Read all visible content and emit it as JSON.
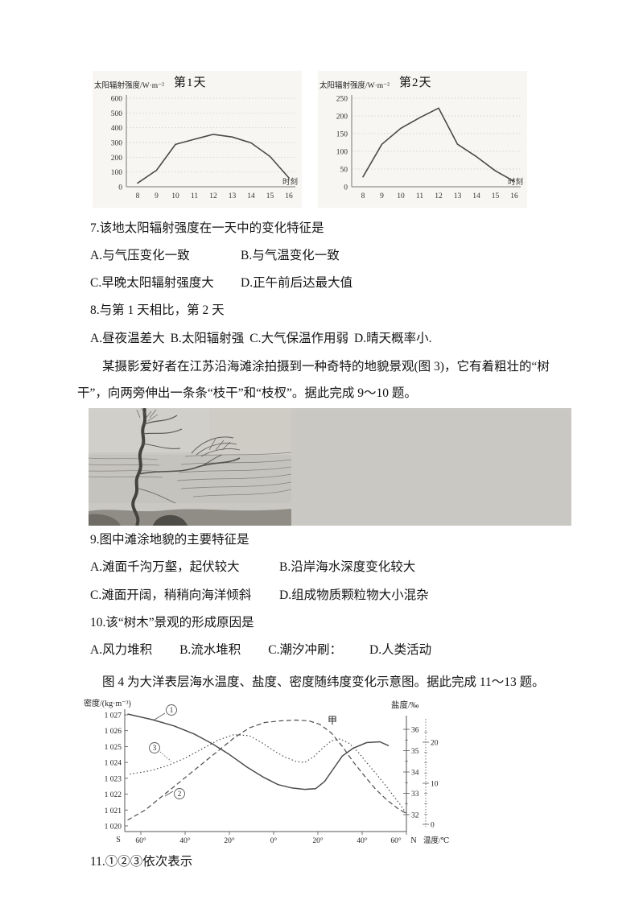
{
  "passages": {
    "mudflat": "某摄影爱好者在江苏沿海滩涂拍摄到一种奇特的地貌景观(图 3)，它有着粗壮的“树干”，向两旁伸出一条条“枝干”和“枝杈”。据此完成 9～10 题。",
    "ocean": "图 4 为大洋表层海水温度、盐度、密度随纬度变化示意图。据此完成 11～13 题。"
  },
  "questions": {
    "q7": {
      "stem": "7.该地太阳辐射强度在一天中的变化特征是",
      "options": [
        "A.与气压变化一致",
        "B.与气温变化一致",
        "C.早晚太阳辐射强度大",
        "D.正午前后达最大值"
      ]
    },
    "q8": {
      "stem": "8.与第 1 天相比，第 2 天",
      "options": [
        "A.昼夜温差大",
        "B.太阳辐射强",
        "C.大气保温作用弱",
        "D.晴天概率小."
      ]
    },
    "q9": {
      "stem": "9.图中滩涂地貌的主要特征是",
      "options": [
        "A.滩面千沟万壑，起伏较大",
        "B.沿岸海水深度变化较大",
        "C.滩面开阔，稍稍向海洋倾斜",
        "D.组成物质颗粒物大小混杂"
      ]
    },
    "q10": {
      "stem": "10.该“树木”景观的形成原因是",
      "options": [
        "A.风力堆积",
        "B.流水堆积",
        "C.潮汐冲刷：",
        "D.人类活动"
      ]
    },
    "q11": {
      "stem": "11.①②③依次表示"
    }
  },
  "chart_data": [
    {
      "type": "line",
      "title": "第1天",
      "ylabel": "太阳辐射强度/W·m⁻²",
      "xlabel": "时刻",
      "x": [
        8,
        9,
        10,
        11,
        12,
        13,
        14,
        15,
        16
      ],
      "values": [
        25,
        112,
        287,
        322,
        355,
        337,
        297,
        205,
        60
      ],
      "ylim": [
        0,
        600
      ],
      "ystep": 100,
      "grid": true
    },
    {
      "type": "line",
      "title": "第2天",
      "ylabel": "太阳辐射强度/W·m⁻²",
      "xlabel": "时刻",
      "x": [
        8,
        9,
        10,
        11,
        12,
        13,
        14,
        15,
        16
      ],
      "values": [
        28,
        120,
        165,
        195,
        222,
        120,
        85,
        45,
        15
      ],
      "ylim": [
        0,
        250
      ],
      "ystep": 50,
      "grid": true
    },
    {
      "type": "line",
      "x_axis": {
        "s_label": "S",
        "n_label": "N",
        "tick_lats": [
          -60,
          -40,
          -20,
          0,
          20,
          40,
          60
        ],
        "tick_labels": [
          "60°",
          "40°",
          "20°",
          "0°",
          "20°",
          "40°",
          "60°"
        ]
      },
      "axes": {
        "density": {
          "label": "密度/(kg·m⁻³)",
          "tick_labels": [
            "1 027",
            "1 026",
            "1 025",
            "1 024",
            "1 023",
            "1 022",
            "1 021",
            "1 020"
          ],
          "range": [
            1020,
            1027
          ]
        },
        "salinity": {
          "label": "盐度/‰",
          "ticks": [
            36,
            35,
            34,
            33,
            32
          ],
          "range": [
            32,
            36
          ]
        },
        "temperature": {
          "label": "温度/℃",
          "ticks": [
            20,
            10,
            0
          ],
          "range": [
            0,
            26
          ]
        }
      },
      "series": [
        {
          "name": "①",
          "axis": "density",
          "style": "solid",
          "points": [
            [
              -66,
              1027.05
            ],
            [
              -55,
              1026.7
            ],
            [
              -45,
              1026.3
            ],
            [
              -36,
              1025.8
            ],
            [
              -28,
              1025.2
            ],
            [
              -20,
              1024.5
            ],
            [
              -12,
              1023.7
            ],
            [
              -5,
              1023.1
            ],
            [
              2,
              1022.6
            ],
            [
              8,
              1022.4
            ],
            [
              14,
              1022.3
            ],
            [
              19,
              1022.35
            ],
            [
              23,
              1022.8
            ],
            [
              27,
              1023.6
            ],
            [
              31,
              1024.4
            ],
            [
              36,
              1024.9
            ],
            [
              42,
              1025.25
            ],
            [
              48,
              1025.3
            ],
            [
              52,
              1025.05
            ]
          ]
        },
        {
          "name": "②",
          "axis": "temperature",
          "style": "dashed",
          "points": [
            [
              -66,
              1
            ],
            [
              -58,
              3.5
            ],
            [
              -50,
              7
            ],
            [
              -42,
              10.5
            ],
            [
              -34,
              14
            ],
            [
              -26,
              17.5
            ],
            [
              -18,
              21
            ],
            [
              -11,
              23.5
            ],
            [
              -4,
              24.8
            ],
            [
              3,
              25.2
            ],
            [
              10,
              25.4
            ],
            [
              16,
              25.2
            ],
            [
              21,
              24.3
            ],
            [
              26,
              22.3
            ],
            [
              31,
              19
            ],
            [
              36,
              15.2
            ],
            [
              41,
              11.8
            ],
            [
              46,
              8.6
            ],
            [
              51,
              6
            ],
            [
              56,
              3.9
            ],
            [
              60,
              2.6
            ]
          ]
        },
        {
          "name": "③",
          "axis": "salinity",
          "style": "dotted",
          "points": [
            [
              -65,
              33.9
            ],
            [
              -56,
              34.05
            ],
            [
              -48,
              34.3
            ],
            [
              -40,
              34.65
            ],
            [
              -32,
              35.1
            ],
            [
              -25,
              35.5
            ],
            [
              -18,
              35.75
            ],
            [
              -11,
              35.7
            ],
            [
              -5,
              35.35
            ],
            [
              0,
              35.0
            ],
            [
              5,
              34.7
            ],
            [
              10,
              34.5
            ],
            [
              14,
              34.45
            ],
            [
              18,
              34.7
            ],
            [
              22,
              35.1
            ],
            [
              26,
              35.45
            ],
            [
              30,
              35.55
            ],
            [
              34,
              35.35
            ],
            [
              38,
              34.95
            ],
            [
              42,
              34.45
            ],
            [
              46,
              33.95
            ],
            [
              50,
              33.45
            ],
            [
              54,
              32.9
            ],
            [
              57,
              32.5
            ],
            [
              60,
              32.05
            ]
          ]
        }
      ],
      "annotations": [
        "①",
        "③",
        "②",
        "甲"
      ]
    }
  ]
}
